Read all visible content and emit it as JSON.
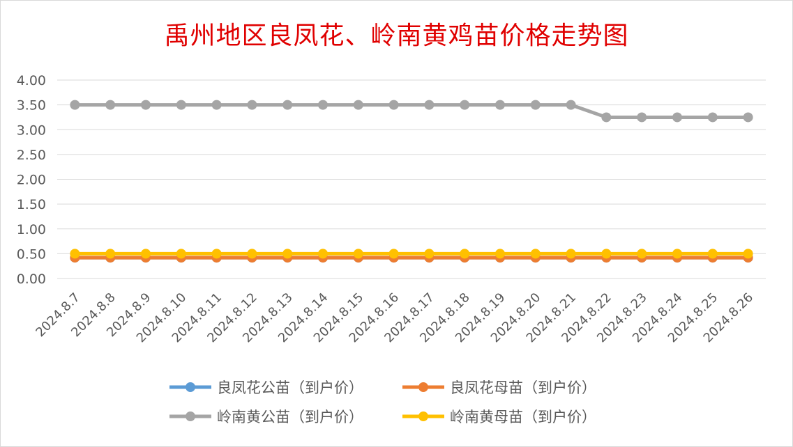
{
  "chart_data": {
    "type": "line",
    "title": "禹州地区良凤花、岭南黄鸡苗价格走势图",
    "x": [
      "2024.8.7",
      "2024.8.8",
      "2024.8.9",
      "2024.8.10",
      "2024.8.11",
      "2024.8.12",
      "2024.8.13",
      "2024.8.14",
      "2024.8.15",
      "2024.8.16",
      "2024.8.17",
      "2024.8.18",
      "2024.8.19",
      "2024.8.20",
      "2024.8.21",
      "2024.8.22",
      "2024.8.23",
      "2024.8.24",
      "2024.8.25",
      "2024.8.26"
    ],
    "ylim": [
      0,
      4
    ],
    "yticks": [
      "0.00",
      "0.50",
      "1.00",
      "1.50",
      "2.00",
      "2.50",
      "3.00",
      "3.50",
      "4.00"
    ],
    "grid": true,
    "legend_position": "bottom",
    "series": [
      {
        "name": "良凤花公苗（到户价）",
        "color": "#5b9bd5",
        "values": [
          0.42,
          0.42,
          0.42,
          0.42,
          0.42,
          0.42,
          0.42,
          0.42,
          0.42,
          0.42,
          0.42,
          0.42,
          0.42,
          0.42,
          0.42,
          0.42,
          0.42,
          0.42,
          0.42,
          0.42
        ]
      },
      {
        "name": "良凤花母苗（到户价）",
        "color": "#ed7d31",
        "values": [
          0.42,
          0.42,
          0.42,
          0.42,
          0.42,
          0.42,
          0.42,
          0.42,
          0.42,
          0.42,
          0.42,
          0.42,
          0.42,
          0.42,
          0.42,
          0.42,
          0.42,
          0.42,
          0.42,
          0.42
        ]
      },
      {
        "name": "岭南黄公苗（到户价）",
        "color": "#a5a5a5",
        "values": [
          3.5,
          3.5,
          3.5,
          3.5,
          3.5,
          3.5,
          3.5,
          3.5,
          3.5,
          3.5,
          3.5,
          3.5,
          3.5,
          3.5,
          3.5,
          3.25,
          3.25,
          3.25,
          3.25,
          3.25
        ]
      },
      {
        "name": "岭南黄母苗（到户价）",
        "color": "#ffc000",
        "values": [
          0.5,
          0.5,
          0.5,
          0.5,
          0.5,
          0.5,
          0.5,
          0.5,
          0.5,
          0.5,
          0.5,
          0.5,
          0.5,
          0.5,
          0.5,
          0.5,
          0.5,
          0.5,
          0.5,
          0.5
        ]
      }
    ]
  }
}
